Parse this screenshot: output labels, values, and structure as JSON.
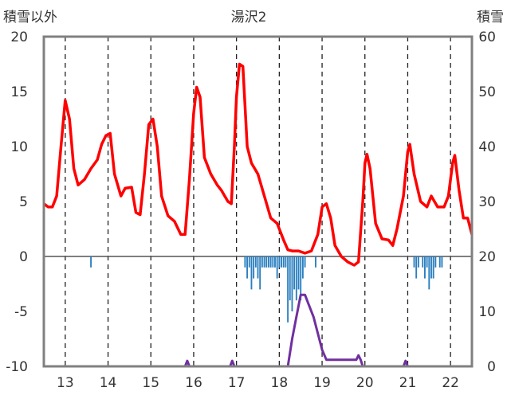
{
  "chart_data": {
    "type": "line",
    "title": "湯沢2",
    "ylabel_left": "積雪以外",
    "ylabel_right": "積雪",
    "ylim_left": [
      -10,
      20
    ],
    "ylim_right": [
      0,
      60
    ],
    "yticks_left": [
      -10,
      -5,
      0,
      5,
      10,
      15,
      20
    ],
    "yticks_right": [
      0,
      10,
      20,
      30,
      40,
      50,
      60
    ],
    "xlim": [
      12.5,
      22.5
    ],
    "day_ticks": [
      "13",
      "14",
      "15",
      "16",
      "17",
      "18",
      "19",
      "20",
      "21",
      "22"
    ],
    "grid": "dashed-vertical-daily",
    "colors": {
      "temperature": "#ff0000",
      "precipitation": "#2a7fc0",
      "snow": "#7030a0",
      "frame": "#808080"
    },
    "series": [
      {
        "name": "",
        "axis": "left",
        "style": "line",
        "color": "#ff0000",
        "points": [
          [
            12.5,
            4.8
          ],
          [
            12.6,
            4.5
          ],
          [
            12.7,
            4.5
          ],
          [
            12.8,
            5.5
          ],
          [
            12.9,
            10
          ],
          [
            13.0,
            14.2
          ],
          [
            13.1,
            12.5
          ],
          [
            13.2,
            8
          ],
          [
            13.3,
            6.5
          ],
          [
            13.45,
            7
          ],
          [
            13.6,
            8
          ],
          [
            13.75,
            8.8
          ],
          [
            13.85,
            10.2
          ],
          [
            13.95,
            11
          ],
          [
            14.05,
            11.2
          ],
          [
            14.15,
            7.5
          ],
          [
            14.3,
            5.5
          ],
          [
            14.4,
            6.2
          ],
          [
            14.55,
            6.3
          ],
          [
            14.65,
            4
          ],
          [
            14.75,
            3.8
          ],
          [
            14.85,
            7.5
          ],
          [
            14.95,
            12
          ],
          [
            15.05,
            12.5
          ],
          [
            15.15,
            10
          ],
          [
            15.25,
            5.5
          ],
          [
            15.4,
            3.7
          ],
          [
            15.55,
            3.2
          ],
          [
            15.7,
            2
          ],
          [
            15.8,
            2
          ],
          [
            15.9,
            7
          ],
          [
            16.0,
            13
          ],
          [
            16.07,
            15.4
          ],
          [
            16.15,
            14.5
          ],
          [
            16.25,
            9
          ],
          [
            16.4,
            7.5
          ],
          [
            16.55,
            6.5
          ],
          [
            16.65,
            6
          ],
          [
            16.8,
            5
          ],
          [
            16.88,
            4.8
          ],
          [
            16.95,
            10
          ],
          [
            17.0,
            14.5
          ],
          [
            17.07,
            17.5
          ],
          [
            17.15,
            17.3
          ],
          [
            17.25,
            10
          ],
          [
            17.35,
            8.5
          ],
          [
            17.5,
            7.5
          ],
          [
            17.65,
            5.5
          ],
          [
            17.8,
            3.5
          ],
          [
            17.95,
            3
          ],
          [
            18.1,
            1.5
          ],
          [
            18.2,
            0.6
          ],
          [
            18.3,
            0.5
          ],
          [
            18.45,
            0.5
          ],
          [
            18.6,
            0.3
          ],
          [
            18.75,
            0.5
          ],
          [
            18.9,
            2
          ],
          [
            19.0,
            4.5
          ],
          [
            19.1,
            4.8
          ],
          [
            19.2,
            3.5
          ],
          [
            19.3,
            1
          ],
          [
            19.45,
            0
          ],
          [
            19.6,
            -0.5
          ],
          [
            19.75,
            -0.8
          ],
          [
            19.85,
            -0.5
          ],
          [
            19.95,
            5
          ],
          [
            20.0,
            8.5
          ],
          [
            20.05,
            9.3
          ],
          [
            20.12,
            8
          ],
          [
            20.25,
            3
          ],
          [
            20.4,
            1.6
          ],
          [
            20.55,
            1.5
          ],
          [
            20.65,
            1
          ],
          [
            20.75,
            2.5
          ],
          [
            20.9,
            5.5
          ],
          [
            21.0,
            9.5
          ],
          [
            21.05,
            10.2
          ],
          [
            21.15,
            7.5
          ],
          [
            21.3,
            5
          ],
          [
            21.45,
            4.5
          ],
          [
            21.55,
            5.5
          ],
          [
            21.7,
            4.5
          ],
          [
            21.85,
            4.5
          ],
          [
            21.95,
            5.5
          ],
          [
            22.05,
            8.5
          ],
          [
            22.1,
            9.2
          ],
          [
            22.2,
            6
          ],
          [
            22.3,
            3.5
          ],
          [
            22.4,
            3.5
          ],
          [
            22.5,
            2
          ]
        ]
      },
      {
        "name": "",
        "axis": "left",
        "style": "bar",
        "color": "#2a7fc0",
        "bar_width_days": 0.035,
        "points": [
          [
            13.6,
            -1
          ],
          [
            17.2,
            -1
          ],
          [
            17.25,
            -2
          ],
          [
            17.3,
            -1
          ],
          [
            17.35,
            -3
          ],
          [
            17.4,
            -2
          ],
          [
            17.45,
            -1
          ],
          [
            17.5,
            -2
          ],
          [
            17.55,
            -3
          ],
          [
            17.6,
            -1
          ],
          [
            17.65,
            -1
          ],
          [
            17.7,
            -1
          ],
          [
            17.75,
            -1
          ],
          [
            17.8,
            -1
          ],
          [
            17.85,
            -1
          ],
          [
            17.9,
            -1
          ],
          [
            17.95,
            -2
          ],
          [
            18.0,
            -1
          ],
          [
            18.05,
            -1
          ],
          [
            18.1,
            -1
          ],
          [
            18.15,
            -1
          ],
          [
            18.2,
            -6
          ],
          [
            18.25,
            -4
          ],
          [
            18.3,
            -5
          ],
          [
            18.35,
            -3
          ],
          [
            18.4,
            -4
          ],
          [
            18.45,
            -3
          ],
          [
            18.5,
            -4
          ],
          [
            18.55,
            -2
          ],
          [
            18.6,
            -1
          ],
          [
            18.85,
            -1
          ],
          [
            21.15,
            -1
          ],
          [
            21.2,
            -2
          ],
          [
            21.25,
            -1
          ],
          [
            21.35,
            -1
          ],
          [
            21.4,
            -2
          ],
          [
            21.45,
            -1
          ],
          [
            21.5,
            -3
          ],
          [
            21.55,
            -2
          ],
          [
            21.6,
            -2
          ],
          [
            21.65,
            -1
          ],
          [
            21.75,
            -1
          ],
          [
            21.8,
            -1
          ]
        ]
      },
      {
        "name": "",
        "axis": "right",
        "style": "line",
        "color": "#7030a0",
        "points": [
          [
            12.5,
            0
          ],
          [
            15.8,
            0
          ],
          [
            15.85,
            1
          ],
          [
            15.9,
            0
          ],
          [
            16.85,
            0
          ],
          [
            16.9,
            1
          ],
          [
            16.95,
            0
          ],
          [
            18.2,
            0
          ],
          [
            18.3,
            5
          ],
          [
            18.4,
            9
          ],
          [
            18.5,
            13
          ],
          [
            18.6,
            13
          ],
          [
            18.7,
            11
          ],
          [
            18.8,
            9
          ],
          [
            18.9,
            6
          ],
          [
            19.0,
            3
          ],
          [
            19.1,
            1.2
          ],
          [
            19.2,
            1.2
          ],
          [
            19.8,
            1.2
          ],
          [
            19.85,
            2
          ],
          [
            19.9,
            1.2
          ],
          [
            19.95,
            0
          ],
          [
            20.9,
            0
          ],
          [
            20.95,
            1
          ],
          [
            21.0,
            0
          ],
          [
            22.5,
            0
          ]
        ]
      }
    ]
  }
}
